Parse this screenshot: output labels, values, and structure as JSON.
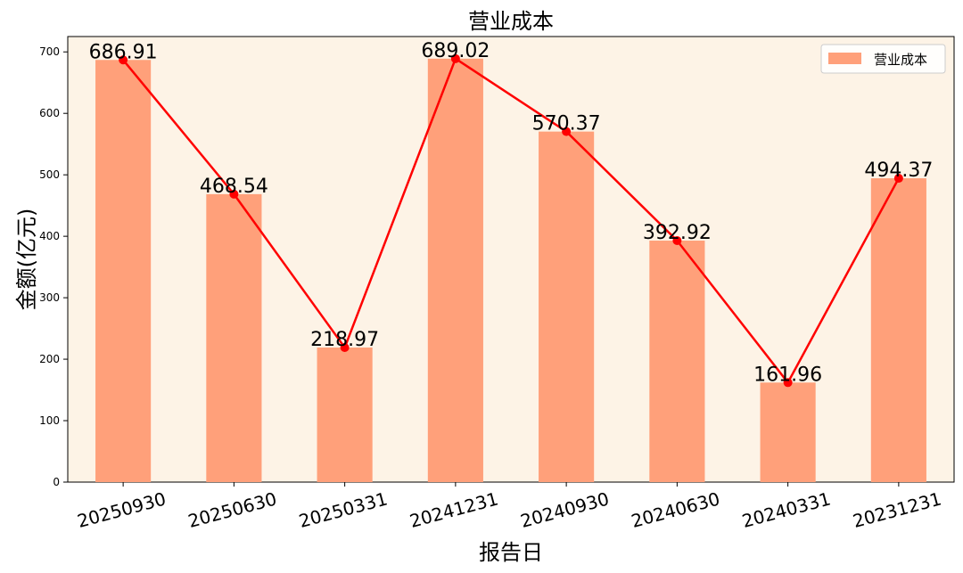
{
  "chart_data": {
    "type": "bar",
    "title": "营业成本",
    "xlabel": "报告日",
    "ylabel": "金额(亿元)",
    "categories": [
      "20250930",
      "20250630",
      "20250331",
      "20241231",
      "20240930",
      "20240630",
      "20240331",
      "20231231"
    ],
    "series": [
      {
        "name": "营业成本",
        "type": "bar",
        "values": [
          686.91,
          468.54,
          218.97,
          689.02,
          570.37,
          392.92,
          161.96,
          494.37
        ],
        "color": "#FFA07A"
      },
      {
        "type": "line",
        "values": [
          686.91,
          468.54,
          218.97,
          689.02,
          570.37,
          392.92,
          161.96,
          494.37
        ],
        "color": "#FF0000"
      }
    ],
    "data_labels": [
      "686.91",
      "468.54",
      "218.97",
      "689.02",
      "570.37",
      "392.92",
      "161.96",
      "494.37"
    ],
    "ylim": [
      0,
      725
    ],
    "yticks": [
      0,
      100,
      200,
      300,
      400,
      500,
      600,
      700
    ],
    "legend_position": "top-right",
    "background_color": "#FDF3E6",
    "grid": false
  }
}
